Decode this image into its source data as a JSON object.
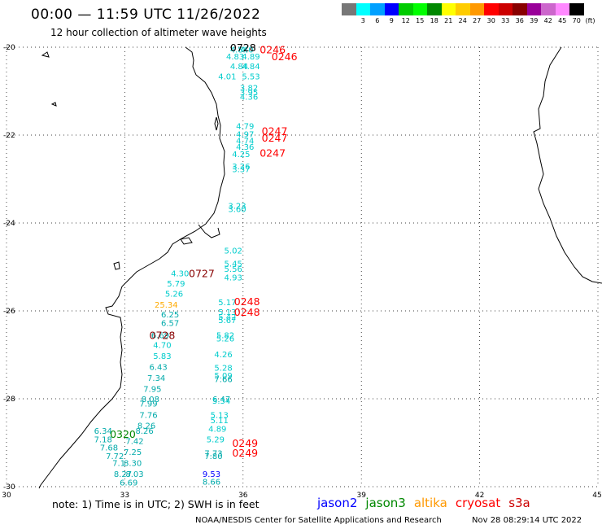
{
  "header": {
    "title": "00:00 — 11:59 UTC 11/26/2022",
    "subtitle": "12 hour collection of altimeter wave heights"
  },
  "legend": {
    "unit": "(ft)",
    "bins": [
      {
        "label": "",
        "color": "#777777"
      },
      {
        "label": "3",
        "color": "#00ffff"
      },
      {
        "label": "6",
        "color": "#00a0ff"
      },
      {
        "label": "9",
        "color": "#0000ff"
      },
      {
        "label": "12",
        "color": "#00cc00"
      },
      {
        "label": "15",
        "color": "#00ff00"
      },
      {
        "label": "18",
        "color": "#008800"
      },
      {
        "label": "21",
        "color": "#ffff00"
      },
      {
        "label": "24",
        "color": "#ffcc00"
      },
      {
        "label": "27",
        "color": "#ff9900"
      },
      {
        "label": "30",
        "color": "#ff0000"
      },
      {
        "label": "33",
        "color": "#cc0000"
      },
      {
        "label": "36",
        "color": "#880000"
      },
      {
        "label": "39",
        "color": "#990099"
      },
      {
        "label": "42",
        "color": "#cc66cc"
      },
      {
        "label": "45",
        "color": "#ff88ff"
      },
      {
        "label": "70",
        "color": "#000000"
      }
    ]
  },
  "map": {
    "lon_range": [
      30,
      45
    ],
    "lat_range": [
      -30,
      -20
    ],
    "lon_ticks": [
      "30",
      "33",
      "36",
      "39",
      "42",
      "45"
    ],
    "lat_ticks": [
      "-20",
      "-22",
      "-24",
      "-26",
      "-28",
      "-30"
    ],
    "grid": "dotted",
    "swh_readings": [
      {
        "lon": 35.9,
        "lat": -20.05,
        "text": "4.84",
        "color": "#00cccc"
      },
      {
        "lon": 36.1,
        "lat": -20.05,
        "text": "4.0",
        "color": "#00cccc"
      },
      {
        "lon": 35.8,
        "lat": -20.2,
        "text": "4.83",
        "color": "#00cccc"
      },
      {
        "lon": 36.2,
        "lat": -20.2,
        "text": "4.89",
        "color": "#00cccc"
      },
      {
        "lon": 35.9,
        "lat": -20.43,
        "text": "4.84",
        "color": "#00cccc"
      },
      {
        "lon": 36.2,
        "lat": -20.43,
        "text": "4.84",
        "color": "#00cccc"
      },
      {
        "lon": 35.6,
        "lat": -20.66,
        "text": "4.01",
        "color": "#00cccc"
      },
      {
        "lon": 36.2,
        "lat": -20.66,
        "text": "5.53",
        "color": "#00cccc"
      },
      {
        "lon": 36.15,
        "lat": -20.92,
        "text": "3.82",
        "color": "#00cccc"
      },
      {
        "lon": 36.15,
        "lat": -21.02,
        "text": "3.95",
        "color": "#00cccc"
      },
      {
        "lon": 36.15,
        "lat": -21.12,
        "text": "4.36",
        "color": "#00cccc"
      },
      {
        "lon": 36.05,
        "lat": -21.79,
        "text": "4.79",
        "color": "#00cccc"
      },
      {
        "lon": 36.05,
        "lat": -21.97,
        "text": "4.97",
        "color": "#00cccc"
      },
      {
        "lon": 36.05,
        "lat": -22.12,
        "text": "4.74",
        "color": "#00cccc"
      },
      {
        "lon": 36.05,
        "lat": -22.26,
        "text": "4.36",
        "color": "#00cccc"
      },
      {
        "lon": 35.95,
        "lat": -22.43,
        "text": "4.25",
        "color": "#00cccc"
      },
      {
        "lon": 35.95,
        "lat": -22.7,
        "text": "3.26",
        "color": "#00cccc"
      },
      {
        "lon": 35.95,
        "lat": -22.77,
        "text": "3.37",
        "color": "#00cccc"
      },
      {
        "lon": 35.85,
        "lat": -23.6,
        "text": "3.23",
        "color": "#00cccc"
      },
      {
        "lon": 35.85,
        "lat": -23.68,
        "text": "3.60",
        "color": "#00cccc"
      },
      {
        "lon": 35.75,
        "lat": -24.62,
        "text": "5.02",
        "color": "#00cccc"
      },
      {
        "lon": 35.75,
        "lat": -24.92,
        "text": "5.45",
        "color": "#00cccc"
      },
      {
        "lon": 35.75,
        "lat": -25.04,
        "text": "5.56",
        "color": "#00cccc"
      },
      {
        "lon": 35.75,
        "lat": -25.23,
        "text": "4.93",
        "color": "#00cccc"
      },
      {
        "lon": 34.4,
        "lat": -25.14,
        "text": "4.30",
        "color": "#00cccc"
      },
      {
        "lon": 34.3,
        "lat": -25.37,
        "text": "5.79",
        "color": "#00cccc"
      },
      {
        "lon": 34.25,
        "lat": -25.6,
        "text": "5.26",
        "color": "#00cccc"
      },
      {
        "lon": 34.05,
        "lat": -25.85,
        "text": "25.34",
        "color": "#ffaa00"
      },
      {
        "lon": 35.6,
        "lat": -25.8,
        "text": "5.17",
        "color": "#00cccc"
      },
      {
        "lon": 35.6,
        "lat": -26.02,
        "text": "5.13",
        "color": "#00cccc"
      },
      {
        "lon": 35.6,
        "lat": -26.13,
        "text": "5.42",
        "color": "#00cccc"
      },
      {
        "lon": 35.6,
        "lat": -26.2,
        "text": "5.67",
        "color": "#00cccc"
      },
      {
        "lon": 34.15,
        "lat": -26.07,
        "text": "6.25",
        "color": "#00aaaa"
      },
      {
        "lon": 34.15,
        "lat": -26.27,
        "text": "6.57",
        "color": "#00aaaa"
      },
      {
        "lon": 33.9,
        "lat": -26.55,
        "text": "6.69",
        "color": "#00aaaa"
      },
      {
        "lon": 35.55,
        "lat": -26.55,
        "text": "5.82",
        "color": "#00cccc"
      },
      {
        "lon": 35.55,
        "lat": -26.62,
        "text": "5.26",
        "color": "#00cccc"
      },
      {
        "lon": 33.95,
        "lat": -26.77,
        "text": "4.70",
        "color": "#00cccc"
      },
      {
        "lon": 33.95,
        "lat": -27.02,
        "text": "5.83",
        "color": "#00cccc"
      },
      {
        "lon": 35.5,
        "lat": -26.98,
        "text": "4.26",
        "color": "#00cccc"
      },
      {
        "lon": 33.85,
        "lat": -27.27,
        "text": "6.43",
        "color": "#00aaaa"
      },
      {
        "lon": 35.5,
        "lat": -27.29,
        "text": "5.28",
        "color": "#00cccc"
      },
      {
        "lon": 35.5,
        "lat": -27.46,
        "text": "5.09",
        "color": "#00cccc"
      },
      {
        "lon": 35.5,
        "lat": -27.55,
        "text": "7.66",
        "color": "#00aaaa"
      },
      {
        "lon": 33.8,
        "lat": -27.52,
        "text": "7.34",
        "color": "#00aaaa"
      },
      {
        "lon": 33.7,
        "lat": -27.77,
        "text": "7.95",
        "color": "#00aaaa"
      },
      {
        "lon": 33.65,
        "lat": -28.0,
        "text": "8.08",
        "color": "#00aaaa"
      },
      {
        "lon": 35.45,
        "lat": -28.0,
        "text": "6.47",
        "color": "#00aaaa"
      },
      {
        "lon": 35.45,
        "lat": -28.04,
        "text": "5.34",
        "color": "#00cccc"
      },
      {
        "lon": 33.6,
        "lat": -28.1,
        "text": "7.99",
        "color": "#00aaaa"
      },
      {
        "lon": 33.6,
        "lat": -28.36,
        "text": "7.76",
        "color": "#00aaaa"
      },
      {
        "lon": 35.4,
        "lat": -28.36,
        "text": "5.13",
        "color": "#00cccc"
      },
      {
        "lon": 35.4,
        "lat": -28.48,
        "text": "5.11",
        "color": "#00cccc"
      },
      {
        "lon": 33.55,
        "lat": -28.6,
        "text": "8.26",
        "color": "#00aaaa"
      },
      {
        "lon": 35.35,
        "lat": -28.68,
        "text": "4.89",
        "color": "#00cccc"
      },
      {
        "lon": 32.45,
        "lat": -28.72,
        "text": "6.34",
        "color": "#00aaaa"
      },
      {
        "lon": 33.5,
        "lat": -28.72,
        "text": "8.26",
        "color": "#00aaaa"
      },
      {
        "lon": 32.45,
        "lat": -28.92,
        "text": "7.18",
        "color": "#00aaaa"
      },
      {
        "lon": 33.25,
        "lat": -28.95,
        "text": "7.42",
        "color": "#00aaaa"
      },
      {
        "lon": 35.3,
        "lat": -28.92,
        "text": "5.29",
        "color": "#00cccc"
      },
      {
        "lon": 32.6,
        "lat": -29.1,
        "text": "7.68",
        "color": "#00aaaa"
      },
      {
        "lon": 33.2,
        "lat": -29.2,
        "text": "7.25",
        "color": "#00aaaa"
      },
      {
        "lon": 35.25,
        "lat": -29.23,
        "text": "7.73",
        "color": "#00aaaa"
      },
      {
        "lon": 35.25,
        "lat": -29.3,
        "text": "7.80",
        "color": "#00aaaa"
      },
      {
        "lon": 32.75,
        "lat": -29.3,
        "text": "7.72",
        "color": "#00aaaa"
      },
      {
        "lon": 32.85,
        "lat": -29.45,
        "text": "7.1",
        "color": "#00aaaa"
      },
      {
        "lon": 33.2,
        "lat": -29.45,
        "text": "8.30",
        "color": "#00aaaa"
      },
      {
        "lon": 32.95,
        "lat": -29.7,
        "text": "8.27",
        "color": "#00aaaa"
      },
      {
        "lon": 33.25,
        "lat": -29.7,
        "text": "8.03",
        "color": "#00aaaa"
      },
      {
        "lon": 33.1,
        "lat": -29.9,
        "text": "6.69",
        "color": "#00aaaa"
      },
      {
        "lon": 35.2,
        "lat": -29.7,
        "text": "9.53",
        "color": "#0000ff"
      },
      {
        "lon": 35.2,
        "lat": -29.88,
        "text": "8.66",
        "color": "#00aaaa"
      }
    ],
    "time_tags": [
      {
        "lon": 36.0,
        "lat": -20.0,
        "text": "0728",
        "color": "#000000"
      },
      {
        "lon": 36.75,
        "lat": -20.05,
        "text": "0246",
        "color": "#ff0000"
      },
      {
        "lon": 37.05,
        "lat": -20.2,
        "text": "0246",
        "color": "#ff0000"
      },
      {
        "lon": 36.8,
        "lat": -21.9,
        "text": "0247",
        "color": "#ff0000"
      },
      {
        "lon": 36.8,
        "lat": -22.06,
        "text": "0247",
        "color": "#ff0000"
      },
      {
        "lon": 36.75,
        "lat": -22.4,
        "text": "0247",
        "color": "#ff0000"
      },
      {
        "lon": 34.95,
        "lat": -25.14,
        "text": "0727",
        "color": "#880000"
      },
      {
        "lon": 36.1,
        "lat": -25.78,
        "text": "0248",
        "color": "#ff0000"
      },
      {
        "lon": 36.1,
        "lat": -26.02,
        "text": "0248",
        "color": "#ff0000"
      },
      {
        "lon": 33.95,
        "lat": -26.55,
        "text": "0728",
        "color": "#880000"
      },
      {
        "lon": 32.95,
        "lat": -28.8,
        "text": "0320",
        "color": "#008800"
      },
      {
        "lon": 36.05,
        "lat": -29.0,
        "text": "0249",
        "color": "#ff0000"
      },
      {
        "lon": 36.05,
        "lat": -29.22,
        "text": "0249",
        "color": "#ff0000"
      }
    ]
  },
  "footer": {
    "note": "note: 1) Time is in UTC; 2) SWH is in feet",
    "missions": [
      {
        "name": "jason2",
        "color": "#0000ff"
      },
      {
        "name": "jason3",
        "color": "#008800"
      },
      {
        "name": "altika",
        "color": "#ff9900"
      },
      {
        "name": "cryosat",
        "color": "#ff0000"
      },
      {
        "name": "s3a",
        "color": "#cc0000"
      }
    ],
    "credit": "NOAA/NESDIS Center for Satellite Applications and Research",
    "issued": "Nov 28 08:29:14 UTC 2022"
  }
}
